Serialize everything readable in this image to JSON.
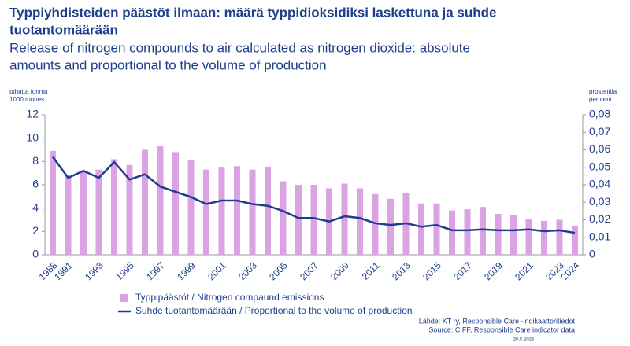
{
  "chart_data": {
    "type": "bar",
    "title": "Typpiyhdisteiden päästöt ilmaan: määrä typpidioksidiksi laskettuna ja suhde tuotantomäärään",
    "subtitle": "Release of nitrogen compounds to air calculated as nitrogen dioxide: absolute amounts and proportional to the volume of production",
    "y_label": [
      "tuhatta tonnia",
      "1000 tonnes"
    ],
    "y2_label": [
      "prosenttia",
      "per cent"
    ],
    "categories": [
      "1988",
      "1991",
      null,
      "1993",
      null,
      "1995",
      null,
      "1997",
      null,
      "1999",
      null,
      "2001",
      null,
      "2003",
      null,
      "2005",
      null,
      "2007",
      null,
      "2009",
      null,
      "2011",
      null,
      "2013",
      null,
      "2015",
      null,
      "2017",
      null,
      "2019",
      null,
      "2021",
      null,
      "2023",
      "2024"
    ],
    "series": [
      {
        "name": "Typpipäästöt / Nitrogen compaund emissions",
        "color": "#dba3e3",
        "values": [
          8.9,
          6.8,
          7.1,
          7.3,
          8.2,
          7.7,
          9.0,
          9.3,
          8.8,
          8.1,
          7.3,
          7.5,
          7.6,
          7.3,
          7.5,
          6.3,
          6.0,
          6.0,
          5.7,
          6.1,
          5.7,
          5.2,
          4.8,
          5.3,
          4.4,
          4.4,
          3.8,
          3.9,
          4.1,
          3.5,
          3.4,
          3.1,
          2.9,
          3.0,
          2.5
        ]
      },
      {
        "name": "Suhde tuotantomäärään / Proportional to the volume of production",
        "color": "#1f3d8f",
        "type": "line",
        "axis": "y2",
        "values": [
          0.056,
          0.044,
          0.048,
          0.044,
          0.053,
          0.043,
          0.046,
          0.039,
          0.036,
          0.033,
          0.029,
          0.031,
          0.031,
          0.029,
          0.028,
          0.025,
          0.021,
          0.021,
          0.019,
          0.022,
          0.021,
          0.018,
          0.017,
          0.018,
          0.016,
          0.017,
          0.014,
          0.014,
          0.0145,
          0.014,
          0.014,
          0.0145,
          0.0135,
          0.014,
          0.0125
        ]
      }
    ],
    "ylim": [
      0,
      12
    ],
    "yticks": [
      0,
      2,
      4,
      6,
      8,
      10,
      12
    ],
    "y2lim": [
      0,
      0.08
    ],
    "y2ticks": [
      0,
      {
        "value": 0.01,
        "label": "0,01"
      },
      {
        "value": 0.02,
        "label": "0,02"
      },
      {
        "value": 0.03,
        "label": "0,03"
      },
      {
        "value": 0.04,
        "label": "0,04"
      },
      {
        "value": 0.05,
        "label": "0,05"
      },
      {
        "value": 0.06,
        "label": "0,06"
      },
      {
        "value": 0.07,
        "label": "0,07"
      },
      {
        "value": 0.08,
        "label": "0,08"
      }
    ],
    "grid": false,
    "source": [
      "Lähde: KT ry, Responsible Care -indikaattoritiedot",
      "Source: CIFF, Responsible Care indicator data"
    ],
    "date": "20.5.2025"
  }
}
